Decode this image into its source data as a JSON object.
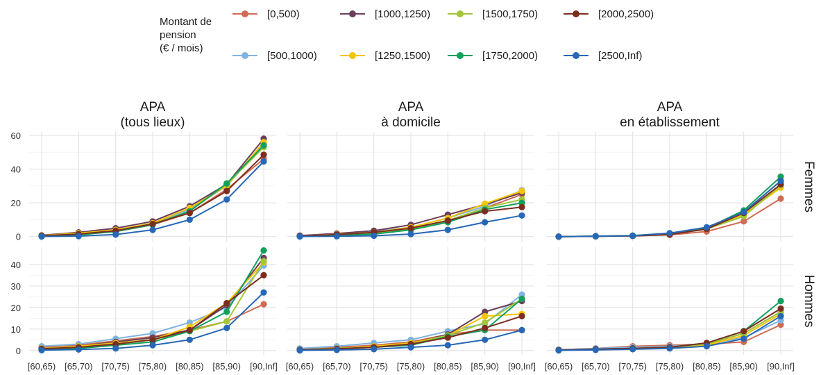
{
  "legend": {
    "title_lines": [
      "Montant de",
      "pension",
      "(€ / mois)"
    ],
    "entries": [
      {
        "name": "[0,500)",
        "color": "#d06a52"
      },
      {
        "name": "[500,1000)",
        "color": "#7fb3e0"
      },
      {
        "name": "[1000,1250)",
        "color": "#6b3f5c"
      },
      {
        "name": "[1250,1500)",
        "color": "#f5c400"
      },
      {
        "name": "[1500,1750)",
        "color": "#a4c639"
      },
      {
        "name": "[1750,2000)",
        "color": "#12a05c"
      },
      {
        "name": "[2000,2500)",
        "color": "#7b2e1f"
      },
      {
        "name": "[2500,Inf)",
        "color": "#2768b6"
      }
    ]
  },
  "chart_data": {
    "type": "line",
    "categories": [
      "[60,65)",
      "[65,70)",
      "[70,75)",
      "[75,80)",
      "[80,85)",
      "[85,90)",
      "[90,Inf]"
    ],
    "columns": [
      {
        "title_lines": [
          "APA",
          "(tous lieux)"
        ]
      },
      {
        "title_lines": [
          "APA",
          "à domicile"
        ]
      },
      {
        "title_lines": [
          "APA",
          "en établissement"
        ]
      }
    ],
    "rows": [
      {
        "label": "Femmes",
        "ylim": [
          -3,
          62
        ],
        "yticks": [
          0,
          20,
          40,
          60
        ]
      },
      {
        "label": "Hommes",
        "ylim": [
          -2,
          48
        ],
        "yticks": [
          0,
          10,
          20,
          30,
          40
        ]
      }
    ],
    "panels": [
      {
        "row": 0,
        "col": 0,
        "series": [
          {
            "values": [
              0.5,
              1.5,
              3.0,
              7.0,
              14.0,
              28.0,
              46.0
            ]
          },
          {
            "values": [
              0.6,
              2.0,
              4.0,
              8.0,
              16.0,
              30.0,
              55.0
            ]
          },
          {
            "values": [
              0.8,
              2.5,
              5.0,
              9.0,
              18.0,
              31.0,
              58.0
            ]
          },
          {
            "values": [
              0.6,
              2.0,
              4.0,
              8.0,
              17.0,
              30.0,
              56.0
            ]
          },
          {
            "values": [
              0.5,
              1.5,
              3.5,
              7.5,
              15.0,
              31.0,
              53.0
            ]
          },
          {
            "values": [
              0.4,
              1.0,
              3.0,
              7.0,
              15.0,
              31.5,
              54.0
            ]
          },
          {
            "values": [
              0.5,
              1.5,
              3.5,
              7.5,
              14.0,
              27.0,
              48.5
            ]
          },
          {
            "values": [
              0.1,
              0.3,
              1.2,
              4.0,
              10.0,
              22.0,
              44.5
            ]
          }
        ]
      },
      {
        "row": 0,
        "col": 1,
        "series": [
          {
            "values": [
              0.3,
              1.0,
              2.0,
              4.5,
              9.0,
              17.0,
              25.0
            ]
          },
          {
            "values": [
              0.5,
              1.5,
              3.0,
              5.5,
              11.0,
              18.0,
              27.5
            ]
          },
          {
            "values": [
              0.6,
              1.8,
              3.5,
              7.0,
              13.0,
              19.0,
              26.0
            ]
          },
          {
            "values": [
              0.4,
              1.3,
              2.5,
              5.5,
              11.0,
              19.5,
              27.0
            ]
          },
          {
            "values": [
              0.3,
              1.0,
              2.0,
              4.5,
              9.5,
              17.0,
              22.0
            ]
          },
          {
            "values": [
              0.2,
              0.6,
              1.5,
              4.0,
              8.5,
              16.0,
              20.0
            ]
          },
          {
            "values": [
              0.4,
              1.2,
              2.5,
              5.0,
              9.5,
              15.0,
              17.5
            ]
          },
          {
            "values": [
              0.1,
              0.2,
              0.5,
              1.5,
              4.0,
              8.5,
              12.5
            ]
          }
        ]
      },
      {
        "row": 0,
        "col": 2,
        "series": [
          {
            "values": [
              0.0,
              0.2,
              0.4,
              1.0,
              3.0,
              9.0,
              22.5
            ]
          },
          {
            "values": [
              0.0,
              0.2,
              0.5,
              1.5,
              4.5,
              13.0,
              30.0
            ]
          },
          {
            "values": [
              0.0,
              0.2,
              0.5,
              1.5,
              5.0,
              14.5,
              33.0
            ]
          },
          {
            "values": [
              0.0,
              0.2,
              0.5,
              1.5,
              4.5,
              13.0,
              29.0
            ]
          },
          {
            "values": [
              0.0,
              0.2,
              0.5,
              1.5,
              4.5,
              12.0,
              30.5
            ]
          },
          {
            "values": [
              0.0,
              0.3,
              0.6,
              2.0,
              5.0,
              15.5,
              35.5
            ]
          },
          {
            "values": [
              0.0,
              0.2,
              0.4,
              1.2,
              4.5,
              14.0,
              31.0
            ]
          },
          {
            "values": [
              0.0,
              0.2,
              0.5,
              2.0,
              5.5,
              14.5,
              33.0
            ]
          }
        ]
      },
      {
        "row": 1,
        "col": 0,
        "series": [
          {
            "values": [
              1.5,
              2.5,
              4.5,
              6.5,
              9.5,
              13.5,
              21.5
            ]
          },
          {
            "values": [
              2.0,
              3.0,
              5.5,
              8.0,
              13.0,
              20.0,
              39.5
            ]
          },
          {
            "values": [
              1.0,
              2.0,
              4.0,
              6.0,
              9.5,
              21.0,
              43.0
            ]
          },
          {
            "values": [
              1.0,
              2.0,
              3.5,
              5.0,
              11.0,
              22.0,
              41.0
            ]
          },
          {
            "values": [
              0.8,
              1.5,
              3.0,
              5.0,
              9.0,
              13.5,
              41.5
            ]
          },
          {
            "values": [
              0.5,
              1.0,
              2.5,
              4.0,
              9.0,
              18.0,
              46.5
            ]
          },
          {
            "values": [
              0.8,
              1.5,
              3.0,
              5.0,
              9.5,
              22.0,
              35.0
            ]
          },
          {
            "values": [
              0.2,
              0.5,
              1.0,
              2.5,
              5.0,
              10.5,
              27.0
            ]
          }
        ]
      },
      {
        "row": 1,
        "col": 1,
        "series": [
          {
            "values": [
              0.8,
              1.5,
              2.5,
              4.0,
              7.5,
              9.5,
              9.5
            ]
          },
          {
            "values": [
              1.0,
              2.0,
              3.5,
              5.0,
              9.0,
              12.5,
              26.0
            ]
          },
          {
            "values": [
              0.5,
              1.0,
              2.0,
              3.5,
              7.5,
              18.0,
              23.0
            ]
          },
          {
            "values": [
              0.4,
              1.0,
              2.0,
              3.5,
              7.0,
              16.0,
              17.0
            ]
          },
          {
            "values": [
              0.4,
              1.0,
              1.5,
              3.0,
              7.0,
              13.0,
              24.0
            ]
          },
          {
            "values": [
              0.3,
              0.8,
              1.5,
              2.5,
              6.5,
              9.5,
              24.0
            ]
          },
          {
            "values": [
              0.3,
              0.8,
              1.5,
              3.0,
              6.0,
              10.5,
              16.0
            ]
          },
          {
            "values": [
              0.1,
              0.3,
              0.6,
              1.5,
              2.5,
              5.0,
              9.5
            ]
          }
        ]
      },
      {
        "row": 1,
        "col": 2,
        "series": [
          {
            "values": [
              0.3,
              1.0,
              2.0,
              2.5,
              3.0,
              4.0,
              12.0
            ]
          },
          {
            "values": [
              0.4,
              1.0,
              1.5,
              2.0,
              3.0,
              6.0,
              14.0
            ]
          },
          {
            "values": [
              0.3,
              0.6,
              1.0,
              1.5,
              3.0,
              8.0,
              18.0
            ]
          },
          {
            "values": [
              0.2,
              0.5,
              1.0,
              1.5,
              2.5,
              7.0,
              17.0
            ]
          },
          {
            "values": [
              0.2,
              0.5,
              1.0,
              1.5,
              3.0,
              8.0,
              18.0
            ]
          },
          {
            "values": [
              0.2,
              0.5,
              1.0,
              1.5,
              3.5,
              9.0,
              23.0
            ]
          },
          {
            "values": [
              0.3,
              0.6,
              1.0,
              1.5,
              3.5,
              9.0,
              19.5
            ]
          },
          {
            "values": [
              0.1,
              0.3,
              0.6,
              1.0,
              2.0,
              5.5,
              16.0
            ]
          }
        ]
      }
    ]
  }
}
